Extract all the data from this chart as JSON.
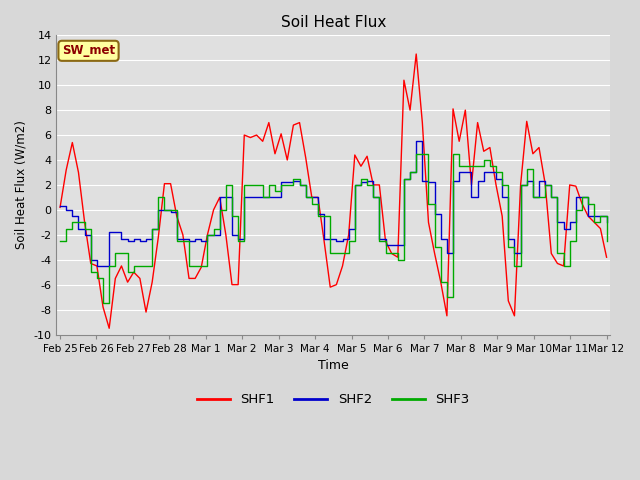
{
  "title": "Soil Heat Flux",
  "xlabel": "Time",
  "ylabel": "Soil Heat Flux (W/m2)",
  "ylim": [
    -10,
    14
  ],
  "fig_bg_color": "#d8d8d8",
  "plot_bg_color": "#e0e0e0",
  "annotation_text": "SW_met",
  "annotation_bg": "#ffffa0",
  "annotation_border": "#8b6914",
  "annotation_text_color": "#8b0000",
  "x_labels": [
    "Feb 25",
    "Feb 26",
    "Feb 27",
    "Feb 28",
    "Mar 1",
    "Mar 2",
    "Mar 3",
    "Mar 4",
    "Mar 5",
    "Mar 6",
    "Mar 7",
    "Mar 8",
    "Mar 9",
    "Mar 10",
    "Mar 11",
    "Mar 12"
  ],
  "shf1_color": "#ff0000",
  "shf2_color": "#0000cc",
  "shf3_color": "#00aa00",
  "legend_labels": [
    "SHF1",
    "SHF2",
    "SHF3"
  ],
  "shf1": [
    0.2,
    3.2,
    5.4,
    3.0,
    -1.0,
    -4.3,
    -4.5,
    -7.8,
    -9.5,
    -5.5,
    -4.5,
    -5.8,
    -5.0,
    -5.5,
    -8.2,
    -5.8,
    -2.2,
    2.1,
    2.1,
    -0.5,
    -2.0,
    -5.5,
    -5.5,
    -4.6,
    -2.0,
    0.0,
    1.0,
    -2.0,
    -6.0,
    -6.0,
    6.0,
    5.8,
    6.0,
    5.5,
    7.0,
    4.5,
    6.1,
    4.0,
    6.8,
    7.0,
    4.2,
    1.0,
    1.0,
    -2.5,
    -6.2,
    -6.0,
    -4.5,
    -2.0,
    4.4,
    3.5,
    4.3,
    2.0,
    2.0,
    -2.5,
    -3.5,
    -3.8,
    10.4,
    8.0,
    12.5,
    7.0,
    -1.0,
    -3.5,
    -5.8,
    -8.5,
    8.1,
    5.5,
    8.0,
    2.0,
    7.0,
    4.7,
    5.0,
    2.0,
    -0.5,
    -7.3,
    -8.5,
    2.0,
    7.1,
    4.5,
    5.0,
    2.1,
    -3.5,
    -4.3,
    -4.5,
    2.0,
    1.9,
    0.5,
    -0.5,
    -1.0,
    -1.5,
    -3.8
  ],
  "shf2": [
    0.3,
    0.0,
    -0.5,
    -1.5,
    -2.0,
    -4.0,
    -4.5,
    -4.5,
    -1.8,
    -1.8,
    -2.3,
    -2.5,
    -2.3,
    -2.5,
    -2.3,
    -1.5,
    0.0,
    0.0,
    -0.2,
    -2.3,
    -2.3,
    -2.5,
    -2.3,
    -2.5,
    -2.0,
    -2.0,
    1.0,
    1.0,
    -2.0,
    -2.3,
    1.0,
    1.0,
    1.0,
    1.0,
    1.0,
    1.0,
    2.2,
    2.2,
    2.3,
    2.0,
    1.0,
    1.0,
    -0.3,
    -2.3,
    -2.3,
    -2.5,
    -2.3,
    -1.5,
    2.0,
    2.2,
    2.3,
    1.0,
    -2.3,
    -2.8,
    -2.8,
    -2.8,
    2.5,
    3.0,
    5.5,
    2.3,
    2.2,
    -0.3,
    -2.3,
    -3.5,
    2.3,
    3.0,
    3.0,
    1.0,
    2.3,
    3.0,
    3.0,
    2.5,
    1.0,
    -2.3,
    -3.5,
    2.0,
    2.3,
    1.0,
    2.3,
    2.0,
    1.0,
    -1.0,
    -1.5,
    -1.0,
    1.0,
    1.0,
    -0.5,
    -0.5,
    -0.5,
    -1.0
  ],
  "shf3": [
    -2.5,
    -1.5,
    -1.0,
    -1.0,
    -1.5,
    -5.0,
    -5.5,
    -7.5,
    -4.5,
    -3.5,
    -3.5,
    -5.0,
    -4.5,
    -4.5,
    -4.5,
    -1.5,
    1.0,
    0.0,
    0.0,
    -2.5,
    -2.5,
    -4.5,
    -4.5,
    -4.5,
    -2.0,
    -1.5,
    0.0,
    2.0,
    -0.5,
    -2.5,
    2.0,
    2.0,
    2.0,
    1.0,
    2.0,
    1.5,
    2.0,
    2.0,
    2.5,
    2.0,
    1.0,
    0.5,
    -0.5,
    -0.5,
    -3.5,
    -3.5,
    -3.5,
    -2.5,
    2.0,
    2.5,
    2.0,
    1.0,
    -2.5,
    -3.5,
    -3.5,
    -4.0,
    2.5,
    3.0,
    4.5,
    4.5,
    0.5,
    -3.0,
    -5.8,
    -7.0,
    4.5,
    3.5,
    3.5,
    3.5,
    3.5,
    4.0,
    3.5,
    3.0,
    2.0,
    -3.0,
    -4.5,
    2.0,
    3.3,
    1.0,
    1.0,
    2.0,
    1.0,
    -3.5,
    -4.5,
    -2.5,
    0.0,
    1.0,
    0.5,
    -1.0,
    -0.5,
    -2.5
  ]
}
